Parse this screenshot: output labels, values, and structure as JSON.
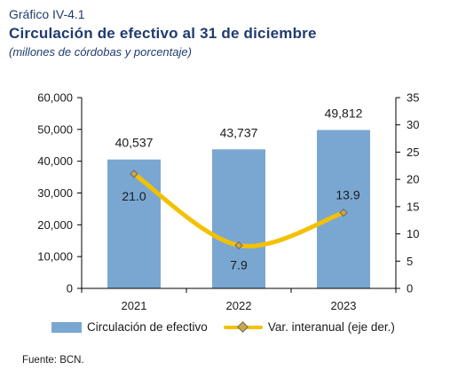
{
  "header": {
    "label": "Gráfico  IV-4.1",
    "title": "Circulación de efectivo al 31 de diciembre",
    "subtitle": "(millones de córdobas y porcentaje)"
  },
  "chart_data": {
    "type": "bar",
    "categories": [
      "2021",
      "2022",
      "2023"
    ],
    "series": [
      {
        "name": "Circulación de efectivo",
        "type": "bar",
        "axis": "left",
        "values": [
          40537,
          43737,
          49812
        ],
        "labels": [
          "40,537",
          "43,737",
          "49,812"
        ]
      },
      {
        "name": "Var. interanual (eje der.)",
        "type": "line",
        "axis": "right",
        "values": [
          21.0,
          7.9,
          13.9
        ],
        "labels": [
          "21.0",
          "7.9",
          "13.9"
        ]
      }
    ],
    "ylim_left": [
      0,
      60000
    ],
    "yticks_left": [
      "0",
      "10,000",
      "20,000",
      "30,000",
      "40,000",
      "50,000",
      "60,000"
    ],
    "ylim_right": [
      0,
      35
    ],
    "yticks_right": [
      "0",
      "5",
      "10",
      "15",
      "20",
      "25",
      "30",
      "35"
    ],
    "grid": false,
    "legend_position": "bottom",
    "colors": {
      "bar": "#7aa7d2",
      "line": "#f3c100",
      "marker": "#c8a84a",
      "axis": "#000000"
    }
  },
  "source": "Fuente: BCN."
}
